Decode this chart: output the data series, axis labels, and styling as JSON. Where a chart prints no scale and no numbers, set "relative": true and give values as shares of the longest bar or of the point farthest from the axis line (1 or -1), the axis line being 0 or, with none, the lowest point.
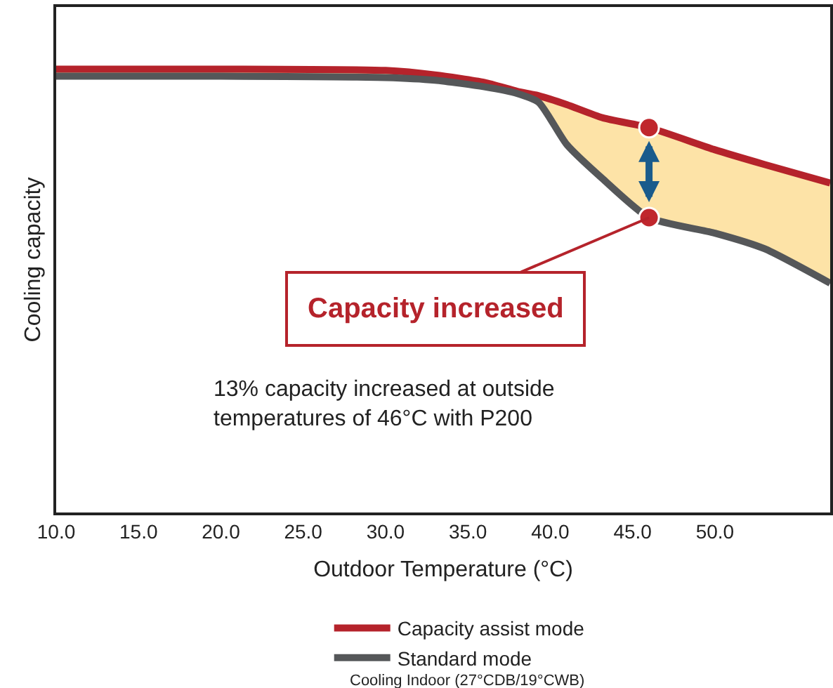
{
  "chart_data": {
    "type": "line",
    "relative": true,
    "xlabel": "Outdoor Temperature (°C)",
    "ylabel": "Cooling capacity",
    "x": [
      10,
      20,
      30,
      33,
      36,
      38,
      39.3,
      41,
      43.2,
      46,
      50,
      53,
      57
    ],
    "xlim": [
      10,
      57
    ],
    "xticks": [
      {
        "value": 10,
        "label": "10.0"
      },
      {
        "value": 15,
        "label": "15.0"
      },
      {
        "value": 20,
        "label": "20.0"
      },
      {
        "value": 25,
        "label": "25.0"
      },
      {
        "value": 30,
        "label": "30.0"
      },
      {
        "value": 35,
        "label": "35.0"
      },
      {
        "value": 40,
        "label": "40.0"
      },
      {
        "value": 45,
        "label": "45.0"
      },
      {
        "value": 50,
        "label": "50.0"
      }
    ],
    "series": [
      {
        "name": "Capacity assist mode",
        "color": "#b5232b",
        "values": [
          1,
          1,
          0.997,
          0.987,
          0.97,
          0.95,
          0.94,
          0.92,
          0.89,
          0.868,
          0.818,
          0.785,
          0.743
        ],
        "lower": [
          0.984,
          0.984,
          0.981,
          0.975,
          0.96,
          0.945,
          0.925,
          0.83,
          0.752,
          0.665,
          0.63,
          0.595,
          0.517
        ],
        "upper": [
          1,
          1,
          0.997,
          0.987,
          0.97,
          0.95,
          0.94,
          0.92,
          0.89,
          0.868,
          0.818,
          0.785,
          0.743
        ]
      },
      {
        "name": "Standard mode",
        "color": "#555759",
        "values": [
          0.984,
          0.984,
          0.981,
          0.975,
          0.96,
          0.945,
          0.925,
          0.83,
          0.752,
          0.665,
          0.63,
          0.595,
          0.517
        ]
      },
      {
        "type": "scatter",
        "marker": "circle",
        "color": "#c0272d",
        "x": [
          46,
          46
        ],
        "values": [
          0.868,
          0.665
        ]
      }
    ],
    "annotations": [
      {
        "text": "Capacity increased",
        "x": 46,
        "y": 0.665
      },
      "13% capacity increased at outside\ntemperatures of 46°C with P200",
      "Cooling Indoor (27°CDB/19°CWB)"
    ],
    "legend": "bottom",
    "grid": false,
    "line_style": "solid"
  }
}
